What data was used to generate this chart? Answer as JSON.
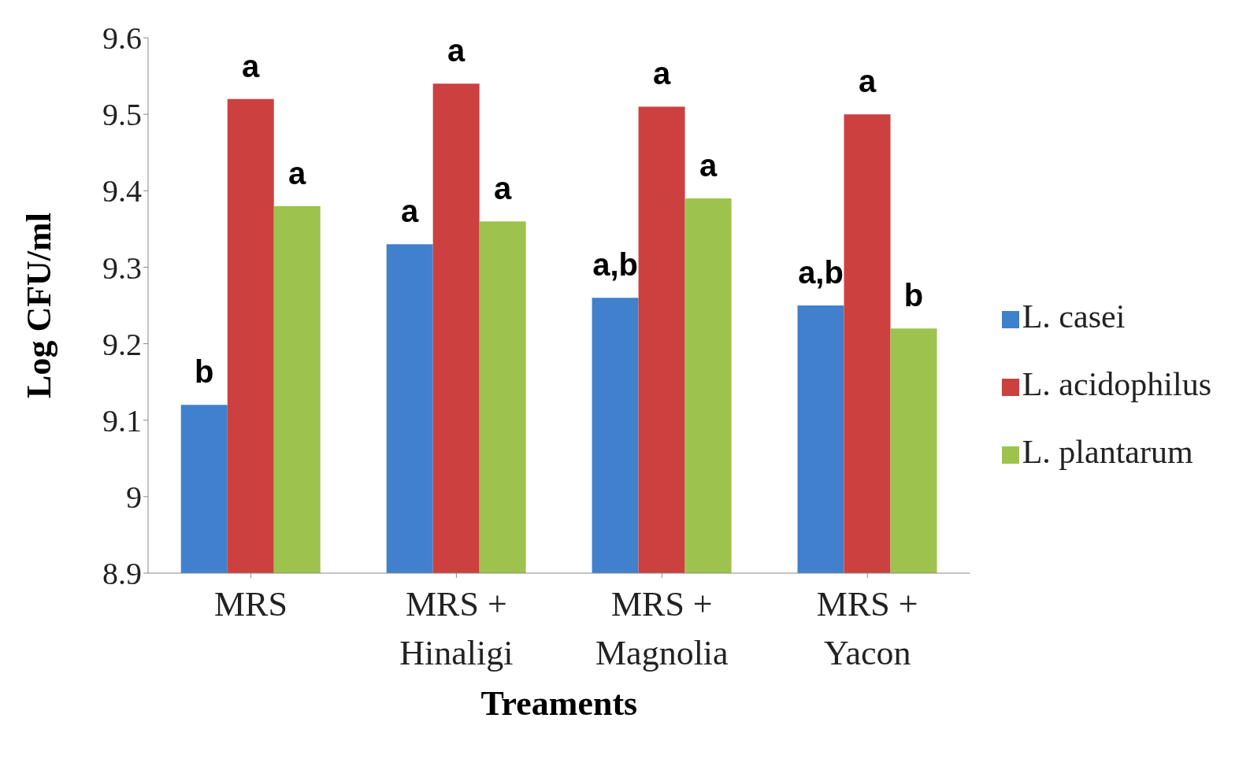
{
  "chart_data": {
    "type": "bar",
    "xlabel": "Treaments",
    "ylabel": "Log CFU/ml",
    "categories": [
      "MRS",
      "MRS + Hinaligi",
      "MRS + Magnolia",
      "MRS + Yacon"
    ],
    "series": [
      {
        "name": "L. casei",
        "color": "#4080cc",
        "values": [
          9.12,
          9.33,
          9.26,
          9.25
        ],
        "value_labels": [
          "b",
          "a",
          "a,b",
          "a,b"
        ]
      },
      {
        "name": "L. acidophilus",
        "color": "#cc4040",
        "values": [
          9.52,
          9.54,
          9.51,
          9.5
        ],
        "value_labels": [
          "a",
          "a",
          "a",
          "a"
        ]
      },
      {
        "name": "L. plantarum",
        "color": "#9dc34e",
        "values": [
          9.38,
          9.36,
          9.39,
          9.22
        ],
        "value_labels": [
          "a",
          "a",
          "a",
          "b"
        ]
      }
    ],
    "ylim": [
      8.9,
      9.6
    ],
    "yticks": [
      8.9,
      9,
      9.1,
      9.2,
      9.3,
      9.4,
      9.5,
      9.6
    ],
    "grid": false,
    "legend": "right"
  }
}
